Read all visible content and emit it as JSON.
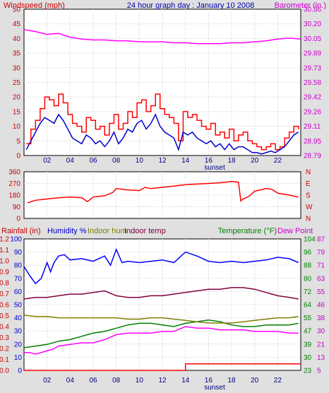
{
  "chart_data": [
    {
      "type": "line",
      "title": "24 hour graph day : January 10 2008",
      "ylabel_left": "Windspeed (mph)",
      "ylabel_right": "Barometer (in.)",
      "x_ticks": [
        "02",
        "04",
        "06",
        "08",
        "10",
        "12",
        "14",
        "16",
        "18",
        "20",
        "22"
      ],
      "x_marker": "sunset",
      "x_range": [
        0,
        24
      ],
      "y_ticks_left": [
        "0",
        "5",
        "10",
        "15",
        "20",
        "25",
        "30",
        "35",
        "40",
        "45",
        "50"
      ],
      "ylim_left": [
        0,
        50
      ],
      "y_ticks_right": [
        "28.79",
        "28.95",
        "29.11",
        "29.26",
        "29.42",
        "29.58",
        "29.73",
        "29.89",
        "30.05",
        "30.20",
        "30.36"
      ],
      "ylim_right": [
        28.79,
        30.36
      ],
      "grid": true,
      "colors": {
        "gust": "#ff0000",
        "wind": "#0000cc",
        "barometer": "#ff00ff",
        "left_axis_text": "#cc0000",
        "right_axis_text": "#cc00cc"
      },
      "series": [
        {
          "key": "gust",
          "axis": "left",
          "x": [
            0.2,
            0.6,
            1.0,
            1.4,
            1.8,
            2.2,
            2.6,
            3.0,
            3.4,
            3.8,
            4.2,
            4.6,
            5.0,
            5.4,
            5.8,
            6.2,
            6.6,
            7.0,
            7.4,
            7.8,
            8.2,
            8.6,
            9.0,
            9.4,
            9.8,
            10.2,
            10.6,
            11.0,
            11.4,
            11.8,
            12.2,
            12.6,
            13.0,
            13.4,
            13.8,
            14.2,
            14.6,
            15.0,
            15.4,
            15.8,
            16.2,
            16.6,
            17.0,
            17.4,
            17.8,
            18.2,
            18.6,
            19.0,
            19.4,
            19.8,
            20.2,
            20.6,
            21.0,
            21.4,
            21.8,
            22.2,
            22.6,
            23.0,
            23.4,
            23.8
          ],
          "values": [
            4,
            9,
            12,
            16,
            20,
            19,
            17,
            21,
            18,
            14,
            11,
            10,
            8,
            13,
            12,
            9,
            10,
            7,
            11,
            14,
            9,
            11,
            15,
            13,
            18,
            19,
            15,
            17,
            21,
            16,
            14,
            13,
            11,
            5,
            15,
            13,
            14,
            12,
            10,
            9,
            11,
            7,
            8,
            6,
            9,
            5,
            7,
            8,
            5,
            4,
            3,
            2,
            3,
            4,
            2,
            3,
            6,
            8,
            10,
            9
          ]
        },
        {
          "key": "wind",
          "axis": "left",
          "x": [
            0.2,
            0.6,
            1.0,
            1.4,
            1.8,
            2.2,
            2.6,
            3.0,
            3.4,
            3.8,
            4.2,
            4.6,
            5.0,
            5.4,
            5.8,
            6.2,
            6.6,
            7.0,
            7.4,
            7.8,
            8.2,
            8.6,
            9.0,
            9.4,
            9.8,
            10.2,
            10.6,
            11.0,
            11.4,
            11.8,
            12.2,
            12.6,
            13.0,
            13.4,
            13.8,
            14.2,
            14.6,
            15.0,
            15.4,
            15.8,
            16.2,
            16.6,
            17.0,
            17.4,
            17.8,
            18.2,
            18.6,
            19.0,
            19.4,
            19.8,
            20.2,
            20.6,
            21.0,
            21.4,
            21.8,
            22.2,
            22.6,
            23.0,
            23.4,
            23.8
          ],
          "values": [
            2,
            5,
            8,
            11,
            13,
            12,
            11,
            14,
            12,
            9,
            6,
            5,
            4,
            7,
            6,
            4,
            5,
            3,
            5,
            8,
            4,
            6,
            9,
            8,
            11,
            12,
            9,
            11,
            14,
            10,
            8,
            7,
            6,
            2,
            8,
            7,
            8,
            6,
            5,
            4,
            5,
            3,
            4,
            2,
            4,
            2,
            3,
            3,
            2,
            1,
            1,
            0.5,
            1,
            1.5,
            1,
            2,
            3,
            5,
            7,
            8
          ]
        },
        {
          "key": "barometer",
          "axis": "right",
          "x": [
            0,
            1,
            2,
            3,
            4,
            5,
            6,
            7,
            8,
            9,
            10,
            11,
            12,
            13,
            14,
            15,
            16,
            17,
            18,
            19,
            20,
            21,
            22,
            23,
            24
          ],
          "values": [
            30.14,
            30.12,
            30.09,
            30.1,
            30.06,
            30.04,
            30.03,
            30.03,
            30.02,
            30.02,
            30.01,
            30.01,
            30.01,
            30.0,
            30.0,
            29.99,
            29.99,
            29.99,
            30.0,
            30.0,
            30.01,
            30.02,
            30.04,
            30.05,
            30.04
          ]
        }
      ]
    },
    {
      "type": "line",
      "ylabel_left": "",
      "y_ticks_left": [
        "0",
        "90",
        "180",
        "270",
        "360"
      ],
      "ylim_left": [
        0,
        360
      ],
      "y_ticks_right": [
        "N",
        "W",
        "S",
        "E",
        "N"
      ],
      "grid": true,
      "colors": {
        "direction": "#ff0000",
        "right_axis_text": "#cc0000"
      },
      "series": [
        {
          "key": "direction",
          "axis": "left",
          "x": [
            0.3,
            1,
            2,
            3,
            4,
            5,
            5.5,
            6,
            7,
            7.7,
            8,
            9,
            10,
            10.5,
            11,
            12,
            13,
            14,
            15,
            16,
            17,
            17.5,
            18,
            18.6,
            18.8,
            19,
            19.5,
            20,
            21,
            21.5,
            22,
            23,
            23.8
          ],
          "values": [
            120,
            140,
            150,
            160,
            165,
            160,
            130,
            165,
            175,
            200,
            230,
            220,
            215,
            240,
            230,
            240,
            250,
            260,
            265,
            270,
            275,
            280,
            285,
            280,
            135,
            150,
            170,
            210,
            230,
            225,
            195,
            180,
            165
          ]
        }
      ]
    },
    {
      "type": "line",
      "legend": [
        "Rainfall (in)",
        "Humidity %",
        "Indoor hum",
        "Indoor temp",
        "Temperature (°F)",
        "Dew Point"
      ],
      "x_ticks": [
        "02",
        "04",
        "06",
        "08",
        "10",
        "12",
        "14",
        "16",
        "18",
        "20",
        "22"
      ],
      "x_marker": "sunset",
      "x_range": [
        0,
        24
      ],
      "y_ticks_rain": [
        "0.0",
        "0.1",
        "0.2",
        "0.3",
        "0.4",
        "0.5",
        "0.6",
        "0.7",
        "0.8",
        "0.9",
        "1.0",
        "1.1",
        "1.2"
      ],
      "ylim_rain": [
        0,
        1.2
      ],
      "y_ticks_humidity": [
        "0",
        "10",
        "20",
        "30",
        "40",
        "50",
        "60",
        "70",
        "80",
        "90",
        "100"
      ],
      "ylim_humidity": [
        0,
        100
      ],
      "y_ticks_temperature": [
        "23",
        "30",
        "39",
        "47",
        "55",
        "64",
        "72",
        "80",
        "88",
        "96",
        "104"
      ],
      "ylim_temperature": [
        23,
        104
      ],
      "y_ticks_dewpoint": [
        "5",
        "13",
        "21",
        "30",
        "38",
        "46",
        "55",
        "63",
        "71",
        "79",
        "87"
      ],
      "grid": true,
      "colors": {
        "rain": "#ff0000",
        "humidity": "#0000ff",
        "indoor_hum": "#808000",
        "indoor_temp": "#800040",
        "temperature": "#008000",
        "dew_point": "#ff00ff",
        "rain_text": "#cc0000",
        "humidity_text": "#0000cc",
        "indoor_hum_text": "#808000",
        "indoor_temp_text": "#800040",
        "temperature_text": "#008000",
        "dew_text": "#cc00cc"
      },
      "series": [
        {
          "key": "rain",
          "scale": "rain",
          "x": [
            0,
            13.5,
            14,
            24
          ],
          "values": [
            0,
            0,
            0.06,
            0.06
          ]
        },
        {
          "key": "humidity",
          "scale": "humidity",
          "x": [
            0,
            0.5,
            1,
            1.5,
            2,
            2.3,
            2.6,
            3,
            3.5,
            4,
            5,
            6,
            7,
            7.5,
            8,
            8.5,
            9,
            10,
            11,
            12,
            13,
            14,
            15,
            16,
            17,
            18,
            19,
            20,
            21,
            22,
            23,
            23.8
          ],
          "values": [
            79,
            72,
            66,
            70,
            82,
            75,
            82,
            87,
            88,
            84,
            85,
            83,
            87,
            80,
            92,
            82,
            83,
            82,
            83,
            84,
            82,
            90,
            87,
            83,
            82,
            83,
            82,
            83,
            84,
            86,
            85,
            82
          ]
        },
        {
          "key": "indoor_temp",
          "scale": "temperature",
          "x": [
            0,
            1,
            2,
            3,
            4,
            5,
            6,
            7,
            8,
            9,
            10,
            11,
            12,
            13,
            14,
            15,
            16,
            17,
            18,
            19,
            20,
            21,
            22,
            23,
            23.8
          ],
          "values": [
            67,
            68,
            68,
            69,
            70,
            70,
            71,
            72,
            69,
            68,
            68,
            69,
            69,
            70,
            71,
            72,
            73,
            73,
            74,
            74,
            73,
            71,
            69,
            68,
            67
          ]
        },
        {
          "key": "temperature",
          "scale": "temperature",
          "x": [
            0,
            1,
            2,
            3,
            4,
            5,
            6,
            7,
            8,
            9,
            10,
            11,
            12,
            13,
            14,
            15,
            16,
            17,
            18,
            19,
            20,
            21,
            22,
            23,
            23.8
          ],
          "values": [
            37,
            38,
            39,
            41,
            42,
            44,
            46,
            47,
            49,
            51,
            52,
            52,
            51,
            50,
            52,
            53,
            54,
            53,
            51,
            50,
            50,
            51,
            51,
            51,
            52
          ]
        },
        {
          "key": "indoor_hum",
          "scale": "humidity",
          "x": [
            0,
            1,
            2,
            3,
            4,
            5,
            6,
            7,
            8,
            9,
            10,
            11,
            12,
            13,
            14,
            15,
            16,
            17,
            18,
            19,
            20,
            21,
            22,
            23,
            23.8
          ],
          "values": [
            42,
            41,
            41,
            40,
            40,
            40,
            40,
            40,
            40,
            39,
            39,
            40,
            40,
            39,
            38,
            37,
            36,
            36,
            36,
            37,
            38,
            39,
            40,
            40,
            41
          ]
        },
        {
          "key": "dew_point",
          "scale": "temperature",
          "x": [
            0,
            0.5,
            1,
            2,
            2.5,
            3,
            4,
            5,
            6,
            7,
            8,
            9,
            10,
            11,
            12,
            13,
            14,
            15,
            16,
            17,
            18,
            19,
            20,
            21,
            22,
            23,
            23.8
          ],
          "values": [
            34,
            34,
            33,
            35,
            36,
            38,
            39,
            40,
            40,
            42,
            45,
            46,
            46,
            46,
            47,
            47,
            50,
            49,
            49,
            48,
            48,
            48,
            47,
            47,
            47,
            46,
            46
          ]
        }
      ]
    }
  ]
}
